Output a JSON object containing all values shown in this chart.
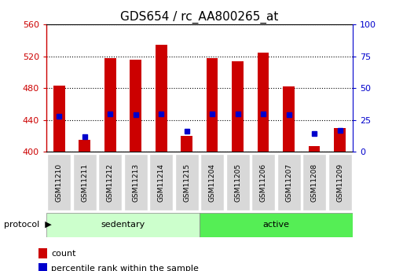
{
  "title": "GDS654 / rc_AA800265_at",
  "samples": [
    "GSM11210",
    "GSM11211",
    "GSM11212",
    "GSM11213",
    "GSM11214",
    "GSM11215",
    "GSM11204",
    "GSM11205",
    "GSM11206",
    "GSM11207",
    "GSM11208",
    "GSM11209"
  ],
  "counts": [
    483,
    415,
    518,
    516,
    534,
    420,
    518,
    514,
    525,
    482,
    407,
    430
  ],
  "percentiles": [
    28,
    12,
    30,
    29,
    30,
    16,
    30,
    30,
    30,
    29,
    14,
    17
  ],
  "ylim_left": [
    400,
    560
  ],
  "ylim_right": [
    0,
    100
  ],
  "yticks_left": [
    400,
    440,
    480,
    520,
    560
  ],
  "yticks_right": [
    0,
    25,
    50,
    75,
    100
  ],
  "bar_color": "#cc0000",
  "marker_color": "#0000cc",
  "sedentary_color": "#ccffcc",
  "active_color": "#55ee55",
  "bar_width": 0.45,
  "baseline": 400,
  "left_tick_color": "#cc0000",
  "right_tick_color": "#0000cc",
  "title_fontsize": 11,
  "tick_fontsize": 8,
  "sample_fontsize": 6.5,
  "label_fontsize": 8,
  "legend_fontsize": 8,
  "n_sedentary": 6,
  "n_active": 6
}
